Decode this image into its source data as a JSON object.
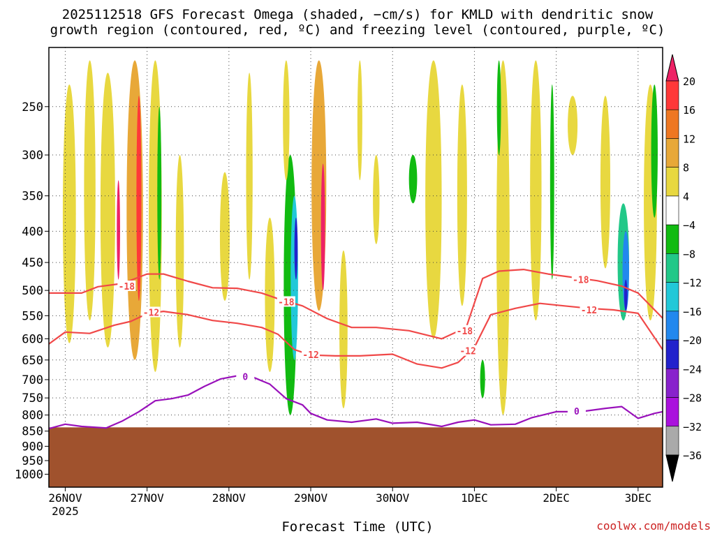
{
  "title_line1": "2025112518 GFS Forecast Omega (shaded, −cm/s) for KMLD with dendritic snow",
  "title_line2": "growth region (contoured, red, ºC) and freezing level (contoured, purple, ºC)",
  "credit": "coolwx.com/models",
  "chart_data": {
    "type": "heatmap",
    "title": "2025112518 GFS Forecast Omega (shaded, −cm/s) for KMLD with dendritic snow growth region (contoured, red, ºC) and freezing level (contoured, purple, ºC)",
    "xlabel": "Forecast Time (UTC)",
    "ylabel": "",
    "x_range_days": [
      -0.2,
      7.3
    ],
    "y_range_hpa": [
      200,
      1050
    ],
    "x_ticks": [
      {
        "label": "26NOV",
        "sub": "2025",
        "day": 0
      },
      {
        "label": "27NOV",
        "sub": "",
        "day": 1
      },
      {
        "label": "28NOV",
        "sub": "",
        "day": 2
      },
      {
        "label": "29NOV",
        "sub": "",
        "day": 3
      },
      {
        "label": "30NOV",
        "sub": "",
        "day": 4
      },
      {
        "label": "1DEC",
        "sub": "",
        "day": 5
      },
      {
        "label": "2DEC",
        "sub": "",
        "day": 6
      },
      {
        "label": "3DEC",
        "sub": "",
        "day": 7
      }
    ],
    "y_ticks": [
      250,
      300,
      350,
      400,
      450,
      500,
      550,
      600,
      650,
      700,
      750,
      800,
      850,
      900,
      950,
      1000
    ],
    "grid": true,
    "ground_level_hpa": 838,
    "colorbar": {
      "labels": [
        "20",
        "16",
        "12",
        "8",
        "4",
        "-4",
        "-8",
        "-12",
        "-16",
        "-20",
        "-24",
        "-28",
        "-32",
        "-36"
      ],
      "bins": [
        {
          "color": "#ee2266"
        },
        {
          "color": "#ff3838"
        },
        {
          "color": "#ee7722"
        },
        {
          "color": "#e8a838"
        },
        {
          "color": "#e8d840"
        },
        {
          "color": "#ffffff"
        },
        {
          "color": "#11bb11"
        },
        {
          "color": "#22c888"
        },
        {
          "color": "#22c8d8"
        },
        {
          "color": "#2288ee"
        },
        {
          "color": "#2222cc"
        },
        {
          "color": "#8822cc"
        },
        {
          "color": "#aa11dd"
        },
        {
          "color": "#aaaaaa"
        },
        {
          "color": "#000000"
        }
      ]
    },
    "omega_features": [
      {
        "day": 0.05,
        "p_top": 230,
        "p_bot": 610,
        "width": 0.16,
        "color": "#e8d840"
      },
      {
        "day": 0.3,
        "p_top": 210,
        "p_bot": 560,
        "width": 0.14,
        "color": "#e8d840"
      },
      {
        "day": 0.52,
        "p_top": 220,
        "p_bot": 620,
        "width": 0.18,
        "color": "#e8d840"
      },
      {
        "day": 0.65,
        "p_top": 330,
        "p_bot": 480,
        "width": 0.04,
        "color": "#ee2266"
      },
      {
        "day": 0.85,
        "p_top": 210,
        "p_bot": 650,
        "width": 0.2,
        "color": "#e8a838"
      },
      {
        "day": 0.9,
        "p_top": 240,
        "p_bot": 520,
        "width": 0.06,
        "color": "#ff3838"
      },
      {
        "day": 1.1,
        "p_top": 210,
        "p_bot": 680,
        "width": 0.16,
        "color": "#e8d840"
      },
      {
        "day": 1.15,
        "p_top": 250,
        "p_bot": 480,
        "width": 0.05,
        "color": "#11bb11"
      },
      {
        "day": 1.4,
        "p_top": 300,
        "p_bot": 620,
        "width": 0.1,
        "color": "#e8d840"
      },
      {
        "day": 1.95,
        "p_top": 320,
        "p_bot": 520,
        "width": 0.12,
        "color": "#e8d840"
      },
      {
        "day": 2.25,
        "p_top": 220,
        "p_bot": 480,
        "width": 0.08,
        "color": "#e8d840"
      },
      {
        "day": 2.5,
        "p_top": 380,
        "p_bot": 680,
        "width": 0.12,
        "color": "#e8d840"
      },
      {
        "day": 2.75,
        "p_top": 300,
        "p_bot": 800,
        "width": 0.16,
        "color": "#11bb11"
      },
      {
        "day": 2.8,
        "p_top": 350,
        "p_bot": 650,
        "width": 0.09,
        "color": "#22c8d8"
      },
      {
        "day": 2.82,
        "p_top": 380,
        "p_bot": 480,
        "width": 0.04,
        "color": "#2222cc"
      },
      {
        "day": 2.7,
        "p_top": 210,
        "p_bot": 330,
        "width": 0.08,
        "color": "#e8d840"
      },
      {
        "day": 3.1,
        "p_top": 210,
        "p_bot": 540,
        "width": 0.18,
        "color": "#e8a838"
      },
      {
        "day": 3.15,
        "p_top": 310,
        "p_bot": 500,
        "width": 0.05,
        "color": "#ee2266"
      },
      {
        "day": 3.4,
        "p_top": 430,
        "p_bot": 780,
        "width": 0.1,
        "color": "#e8d840"
      },
      {
        "day": 3.6,
        "p_top": 210,
        "p_bot": 330,
        "width": 0.06,
        "color": "#e8d840"
      },
      {
        "day": 3.8,
        "p_top": 300,
        "p_bot": 420,
        "width": 0.08,
        "color": "#e8d840"
      },
      {
        "day": 4.25,
        "p_top": 300,
        "p_bot": 360,
        "width": 0.1,
        "color": "#11bb11"
      },
      {
        "day": 4.5,
        "p_top": 210,
        "p_bot": 600,
        "width": 0.2,
        "color": "#e8d840"
      },
      {
        "day": 4.85,
        "p_top": 230,
        "p_bot": 530,
        "width": 0.12,
        "color": "#e8d840"
      },
      {
        "day": 5.1,
        "p_top": 650,
        "p_bot": 750,
        "width": 0.06,
        "color": "#11bb11"
      },
      {
        "day": 5.35,
        "p_top": 210,
        "p_bot": 800,
        "width": 0.16,
        "color": "#e8d840"
      },
      {
        "day": 5.3,
        "p_top": 210,
        "p_bot": 300,
        "width": 0.05,
        "color": "#11bb11"
      },
      {
        "day": 5.75,
        "p_top": 210,
        "p_bot": 560,
        "width": 0.14,
        "color": "#e8d840"
      },
      {
        "day": 5.95,
        "p_top": 230,
        "p_bot": 480,
        "width": 0.05,
        "color": "#11bb11"
      },
      {
        "day": 6.2,
        "p_top": 240,
        "p_bot": 300,
        "width": 0.12,
        "color": "#e8d840"
      },
      {
        "day": 6.6,
        "p_top": 240,
        "p_bot": 460,
        "width": 0.12,
        "color": "#e8d840"
      },
      {
        "day": 6.82,
        "p_top": 360,
        "p_bot": 560,
        "width": 0.14,
        "color": "#22c888"
      },
      {
        "day": 6.85,
        "p_top": 400,
        "p_bot": 540,
        "width": 0.08,
        "color": "#2288ee"
      },
      {
        "day": 6.85,
        "p_top": 480,
        "p_bot": 540,
        "width": 0.04,
        "color": "#2222cc"
      },
      {
        "day": 7.15,
        "p_top": 230,
        "p_bot": 560,
        "width": 0.16,
        "color": "#e8d840"
      },
      {
        "day": 7.2,
        "p_top": 230,
        "p_bot": 380,
        "width": 0.08,
        "color": "#11bb11"
      }
    ],
    "contours": [
      {
        "name": "-18",
        "color": "#f04848",
        "points": [
          [
            -0.2,
            505
          ],
          [
            0.2,
            505
          ],
          [
            0.4,
            493
          ],
          [
            0.7,
            487
          ],
          [
            1.0,
            470
          ],
          [
            1.2,
            470
          ],
          [
            1.5,
            483
          ],
          [
            1.8,
            495
          ],
          [
            2.1,
            496
          ],
          [
            2.4,
            505
          ],
          [
            2.6,
            516
          ],
          [
            2.9,
            530
          ],
          [
            3.2,
            556
          ],
          [
            3.5,
            575
          ],
          [
            3.8,
            575
          ],
          [
            4.2,
            582
          ],
          [
            4.6,
            600
          ],
          [
            4.9,
            575
          ],
          [
            5.1,
            478
          ],
          [
            5.3,
            465
          ],
          [
            5.6,
            462
          ],
          [
            5.9,
            470
          ],
          [
            6.2,
            476
          ],
          [
            6.5,
            482
          ],
          [
            6.8,
            492
          ],
          [
            7.0,
            505
          ],
          [
            7.3,
            555
          ]
        ],
        "labels": [
          {
            "text": "-18",
            "day": 0.75,
            "p": 492
          },
          {
            "text": "-18",
            "day": 2.7,
            "p": 522
          },
          {
            "text": "-18",
            "day": 4.88,
            "p": 582
          },
          {
            "text": "-18",
            "day": 6.3,
            "p": 480
          }
        ]
      },
      {
        "name": "-12",
        "color": "#f04848",
        "points": [
          [
            -0.2,
            612
          ],
          [
            0.0,
            585
          ],
          [
            0.3,
            588
          ],
          [
            0.6,
            570
          ],
          [
            0.8,
            562
          ],
          [
            1.0,
            546
          ],
          [
            1.2,
            541
          ],
          [
            1.5,
            548
          ],
          [
            1.8,
            560
          ],
          [
            2.1,
            566
          ],
          [
            2.4,
            575
          ],
          [
            2.6,
            590
          ],
          [
            2.8,
            625
          ],
          [
            3.0,
            638
          ],
          [
            3.3,
            640
          ],
          [
            3.6,
            640
          ],
          [
            4.0,
            636
          ],
          [
            4.3,
            660
          ],
          [
            4.6,
            670
          ],
          [
            4.8,
            656
          ],
          [
            5.0,
            620
          ],
          [
            5.2,
            548
          ],
          [
            5.5,
            535
          ],
          [
            5.8,
            525
          ],
          [
            6.1,
            530
          ],
          [
            6.4,
            535
          ],
          [
            6.7,
            538
          ],
          [
            7.0,
            545
          ],
          [
            7.3,
            625
          ]
        ],
        "labels": [
          {
            "text": "-12",
            "day": 1.05,
            "p": 543
          },
          {
            "text": "-12",
            "day": 3.0,
            "p": 637
          },
          {
            "text": "-12",
            "day": 4.92,
            "p": 628
          },
          {
            "text": "-12",
            "day": 6.4,
            "p": 538
          }
        ]
      },
      {
        "name": "0",
        "color": "#9911bb",
        "points": [
          [
            -0.2,
            842
          ],
          [
            0.0,
            828
          ],
          [
            0.2,
            835
          ],
          [
            0.5,
            840
          ],
          [
            0.7,
            818
          ],
          [
            0.9,
            790
          ],
          [
            1.1,
            758
          ],
          [
            1.3,
            752
          ],
          [
            1.5,
            742
          ],
          [
            1.7,
            718
          ],
          [
            1.9,
            698
          ],
          [
            2.1,
            690
          ],
          [
            2.3,
            694
          ],
          [
            2.5,
            712
          ],
          [
            2.7,
            752
          ],
          [
            2.9,
            770
          ],
          [
            3.0,
            795
          ],
          [
            3.2,
            815
          ],
          [
            3.5,
            822
          ],
          [
            3.8,
            812
          ],
          [
            4.0,
            825
          ],
          [
            4.3,
            822
          ],
          [
            4.6,
            835
          ],
          [
            4.8,
            822
          ],
          [
            5.0,
            815
          ],
          [
            5.2,
            830
          ],
          [
            5.5,
            828
          ],
          [
            5.7,
            808
          ],
          [
            6.0,
            790
          ],
          [
            6.3,
            790
          ],
          [
            6.6,
            780
          ],
          [
            6.8,
            775
          ],
          [
            7.0,
            810
          ],
          [
            7.2,
            795
          ],
          [
            7.3,
            790
          ]
        ],
        "labels": [
          {
            "text": "0",
            "day": 2.2,
            "p": 692
          },
          {
            "text": "0",
            "day": 6.25,
            "p": 788
          }
        ]
      }
    ]
  }
}
